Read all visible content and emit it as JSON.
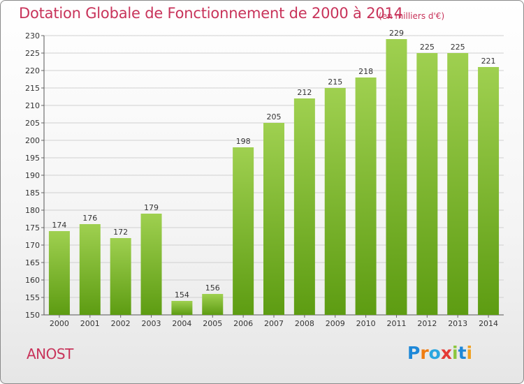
{
  "title": "Dotation Globale de Fonctionnement de 2000 à 2014",
  "unit_label": "(en milliers d'€)",
  "commune": "ANOST",
  "logo": {
    "text": "Proxiti",
    "letters": [
      "P",
      "r",
      "o",
      "x",
      "i",
      "t",
      "i"
    ]
  },
  "colors": {
    "title": "#c8335a",
    "bar_top": "#9fd050",
    "bar_bottom": "#5d9c12",
    "grid": "#d0d0d0"
  },
  "chart_data": {
    "type": "bar",
    "categories": [
      "2000",
      "2001",
      "2002",
      "2003",
      "2004",
      "2005",
      "2006",
      "2007",
      "2008",
      "2009",
      "2010",
      "2011",
      "2012",
      "2013",
      "2014"
    ],
    "values": [
      174,
      176,
      172,
      179,
      154,
      156,
      198,
      205,
      212,
      215,
      218,
      229,
      225,
      225,
      221
    ],
    "ylim": [
      150,
      230
    ],
    "yticks": [
      150,
      155,
      160,
      165,
      170,
      175,
      180,
      185,
      190,
      195,
      200,
      205,
      210,
      215,
      220,
      225,
      230
    ],
    "grid": true,
    "xlabel": "",
    "ylabel": ""
  }
}
